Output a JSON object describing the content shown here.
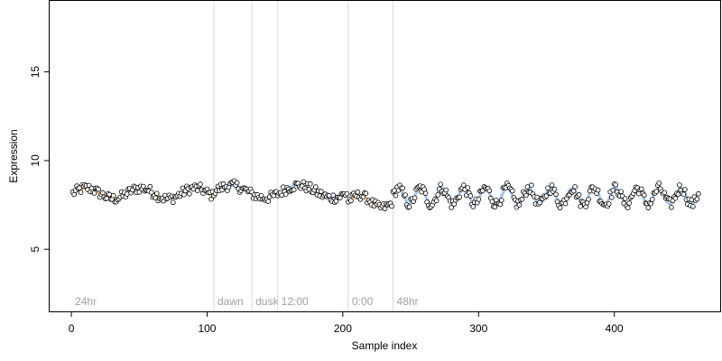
{
  "chart_data": {
    "type": "scatter",
    "title": "",
    "xlabel": "Sample index",
    "ylabel": "Expression",
    "xlim": [
      -16,
      478
    ],
    "ylim": [
      1.5,
      19.0
    ],
    "xticks": [
      0,
      100,
      200,
      300,
      400
    ],
    "yticks": [
      5,
      10,
      15
    ],
    "grid": false,
    "legend": "none",
    "colors": {
      "point_fill": "#ffffff",
      "point_stroke": "#000000",
      "blue_trend": "#8fb3e0",
      "orange_trend": "#eaa45a",
      "region_line": "#d9d9d9",
      "region_text": "#a0a0a0"
    },
    "regions": [
      {
        "label": "24hr",
        "x": 0
      },
      {
        "label": "dawn",
        "x": 105
      },
      {
        "label": "dusk",
        "x": 133
      },
      {
        "label": "12:00",
        "x": 152
      },
      {
        "label": "0:00",
        "x": 204
      },
      {
        "label": "48hr",
        "x": 237
      }
    ],
    "series": [
      {
        "kind": "points",
        "segments": [
          {
            "x_start": 1,
            "x_end": 104,
            "y_base": 8.15,
            "y_amp": 0.3,
            "period": 40,
            "noise": 0.28
          },
          {
            "x_start": 105,
            "x_end": 203,
            "y_base": 8.25,
            "y_amp": 0.35,
            "period": 50,
            "noise": 0.28
          },
          {
            "x_start": 204,
            "x_end": 236,
            "y_base": 7.7,
            "y_amp": 0.35,
            "period": 33,
            "noise": 0.25
          },
          {
            "x_start": 237,
            "x_end": 462,
            "y_base": 8.0,
            "y_amp": 0.45,
            "period": 16,
            "noise": 0.3
          }
        ]
      }
    ]
  }
}
